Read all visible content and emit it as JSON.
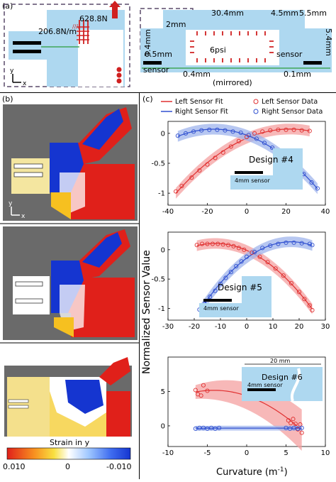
{
  "panel_labels": {
    "a": "(a)",
    "b": "(b)",
    "c": "(c)"
  },
  "schematic_left": {
    "force_label": "628.8N",
    "stiffness_label": "206.8N/m",
    "axis_y": "y",
    "axis_x": "x"
  },
  "schematic_right": {
    "dim_top": "30.4mm",
    "dim_top_right_a": "4.5mm",
    "dim_top_right_b": "5.5mm",
    "dim_left_height": "3.4mm",
    "dim_left_inner": "2mm",
    "dim_right_height": "5.4mm",
    "pressure_label": "6psi",
    "dim_sensor_gap": "0.5mm",
    "sensor_left": "sensor",
    "sensor_right": "sensor",
    "dim_bottom_left": "0.4mm",
    "mirrored_label": "(mirrored)",
    "dim_bottom_right": "0.1mm"
  },
  "fem": {
    "axis_y": "y",
    "axis_x": "x",
    "colorbar_title": "Strain in y",
    "colorbar_ticks": [
      "0.010",
      "0",
      "-0.010"
    ],
    "colors": {
      "high": "#e0201a",
      "zero": "#ffffff",
      "low": "#1535d0"
    }
  },
  "chart_common": {
    "ylabel": "Normalized Sensor Value",
    "xlabel": "Curvature (m",
    "xlabel_exp": "-1",
    "xlabel_end": ")",
    "legend": [
      "Left Sensor Fit",
      "Left Sensor Data",
      "Right Sensor Fit",
      "Right Sensor Data"
    ],
    "colors": {
      "left": "#e03030",
      "left_band": "#f4a0a0",
      "right": "#3050d0",
      "right_band": "#9fb4ec"
    }
  },
  "chart_data": [
    {
      "type": "scatter",
      "design_label": "Design #4",
      "sensor_label": "4mm sensor",
      "xlim": [
        -40,
        40
      ],
      "ylim": [
        -1.2,
        0.2
      ],
      "xticks": [
        -40,
        -20,
        0,
        20,
        40
      ],
      "yticks": [
        0,
        -0.5,
        -1
      ],
      "series": [
        {
          "name": "Left Sensor Data",
          "x": [
            -36,
            -33,
            -28,
            -24,
            -20,
            -16,
            -12,
            -8,
            -4,
            0,
            4,
            8,
            12,
            16,
            20,
            24,
            28,
            32
          ],
          "y": [
            -0.97,
            -0.88,
            -0.74,
            -0.62,
            -0.52,
            -0.41,
            -0.32,
            -0.22,
            -0.13,
            -0.06,
            0,
            0.03,
            0.05,
            0.06,
            0.06,
            0.06,
            0.05,
            0.04
          ]
        },
        {
          "name": "Right Sensor Data",
          "x": [
            -35,
            -31,
            -27,
            -23,
            -19,
            -15,
            -11,
            -7,
            -3,
            1,
            5,
            9,
            13,
            17,
            21,
            25,
            29,
            33,
            36
          ],
          "y": [
            -0.04,
            0,
            0.03,
            0.05,
            0.06,
            0.06,
            0.05,
            0.03,
            0.01,
            -0.03,
            -0.09,
            -0.16,
            -0.24,
            -0.34,
            -0.44,
            -0.56,
            -0.68,
            -0.82,
            -0.92
          ]
        }
      ]
    },
    {
      "type": "scatter",
      "design_label": "Design #5",
      "sensor_label": "4mm sensor",
      "xlim": [
        -30,
        30
      ],
      "ylim": [
        -1.2,
        0.3
      ],
      "xticks": [
        -30,
        -20,
        -10,
        0,
        10,
        20,
        30
      ],
      "yticks": [
        0,
        -0.5,
        -1
      ],
      "series": [
        {
          "name": "Left Sensor Data",
          "x": [
            -19,
            -17,
            -15,
            -13,
            -11,
            -9,
            -7,
            -5,
            -3,
            -1,
            2,
            5,
            8,
            11,
            14,
            17,
            20,
            22,
            24,
            25
          ],
          "y": [
            0.08,
            0.1,
            0.1,
            0.1,
            0.1,
            0.09,
            0.08,
            0.06,
            0.03,
            0,
            -0.05,
            -0.12,
            -0.21,
            -0.32,
            -0.44,
            -0.57,
            -0.72,
            -0.84,
            -0.95,
            -1.03
          ]
        },
        {
          "name": "Right Sensor Data",
          "x": [
            -18,
            -16,
            -14,
            -12,
            -10,
            -8,
            -6,
            -4,
            -2,
            0,
            3,
            6,
            9,
            12,
            15,
            18,
            21,
            24,
            25
          ],
          "y": [
            -1.02,
            -0.92,
            -0.8,
            -0.7,
            -0.58,
            -0.48,
            -0.38,
            -0.28,
            -0.2,
            -0.12,
            -0.04,
            0.03,
            0.07,
            0.1,
            0.12,
            0.12,
            0.11,
            0.1,
            0.08
          ]
        }
      ]
    },
    {
      "type": "scatter",
      "design_label": "Design #6",
      "sensor_label": "4mm sensor",
      "dim_label": "20 mm",
      "xlim": [
        -10,
        10
      ],
      "ylim": [
        -3,
        10
      ],
      "xticks": [
        -10,
        -5,
        0,
        5,
        10
      ],
      "yticks": [
        0,
        5
      ],
      "series": [
        {
          "name": "Left Sensor Data",
          "x": [
            -6.5,
            -6.2,
            -5.8,
            -5.5,
            -5,
            5.3,
            5.6,
            5.9,
            6.2,
            6.5,
            6.8,
            7
          ],
          "y": [
            5.2,
            4.6,
            4.4,
            5.9,
            5.1,
            0.8,
            0.4,
            1.0,
            0.3,
            -0.5,
            0.2,
            -1.0
          ]
        },
        {
          "name": "Right Sensor Data",
          "x": [
            -6.5,
            -6,
            -5.5,
            -5,
            -4.5,
            -4,
            -3.5,
            5,
            5.5,
            6,
            6.5,
            7
          ],
          "y": [
            -0.4,
            -0.3,
            -0.3,
            -0.4,
            -0.3,
            -0.4,
            -0.3,
            -0.3,
            -0.4,
            -0.3,
            -0.4,
            -0.3
          ]
        }
      ]
    }
  ]
}
